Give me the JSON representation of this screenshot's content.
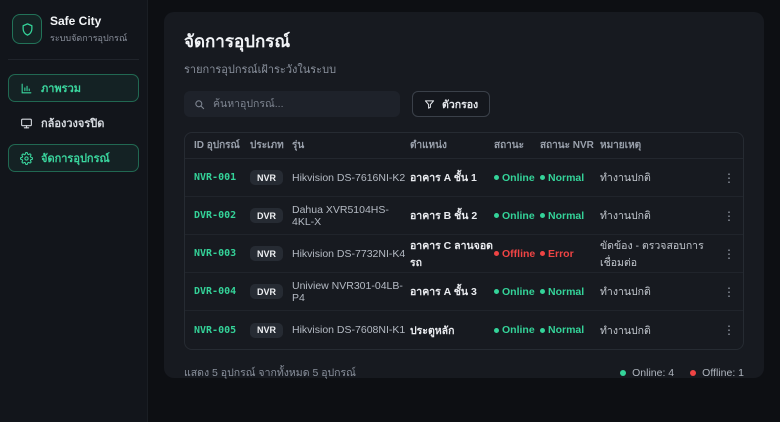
{
  "brand": {
    "name": "Safe City",
    "subtitle": "ระบบจัดการอุปกรณ์"
  },
  "sidebar": {
    "items": [
      {
        "label": "ภาพรวม",
        "icon": "bar-chart-icon",
        "active": true
      },
      {
        "label": "กล้องวงจรปิด",
        "icon": "monitor-icon",
        "active": false
      },
      {
        "label": "จัดการอุปกรณ์",
        "icon": "gear-icon",
        "active": true
      }
    ]
  },
  "header": {
    "title": "จัดการอุปกรณ์",
    "subtitle": "รายการอุปกรณ์เฝ้าระวังในระบบ"
  },
  "toolbar": {
    "search_placeholder": "ค้นหาอุปกรณ์...",
    "filter_label": "ตัวกรอง"
  },
  "table": {
    "columns": [
      "ID อุปกรณ์",
      "ประเภท",
      "รุ่น",
      "ตำแหน่ง",
      "สถานะ",
      "สถานะ NVR",
      "หมายเหตุ"
    ],
    "rows": [
      {
        "id": "NVR-001",
        "type": "NVR",
        "model": "Hikvision DS-7616NI-K2",
        "location": "อาคาร A ชั้น 1",
        "status": "Online",
        "nvr_status": "Normal",
        "note": "ทำงานปกติ",
        "status_ok": true,
        "nvr_ok": true
      },
      {
        "id": "DVR-002",
        "type": "DVR",
        "model": "Dahua XVR5104HS-4KL-X",
        "location": "อาคาร B ชั้น 2",
        "status": "Online",
        "nvr_status": "Normal",
        "note": "ทำงานปกติ",
        "status_ok": true,
        "nvr_ok": true
      },
      {
        "id": "NVR-003",
        "type": "NVR",
        "model": "Hikvision DS-7732NI-K4",
        "location": "อาคาร C ลานจอดรถ",
        "status": "Offline",
        "nvr_status": "Error",
        "note": "ขัดข้อง - ตรวจสอบการเชื่อมต่อ",
        "status_ok": false,
        "nvr_ok": false
      },
      {
        "id": "DVR-004",
        "type": "DVR",
        "model": "Uniview NVR301-04LB-P4",
        "location": "อาคาร A ชั้น 3",
        "status": "Online",
        "nvr_status": "Normal",
        "note": "ทำงานปกติ",
        "status_ok": true,
        "nvr_ok": true
      },
      {
        "id": "NVR-005",
        "type": "NVR",
        "model": "Hikvision DS-7608NI-K1",
        "location": "ประตูหลัก",
        "status": "Online",
        "nvr_status": "Normal",
        "note": "ทำงานปกติ",
        "status_ok": true,
        "nvr_ok": true
      }
    ]
  },
  "footer": {
    "summary": "แสดง 5 อุปกรณ์ จากทั้งหมด 5 อุปกรณ์",
    "online_label": "Online: 4",
    "offline_label": "Offline: 1"
  },
  "colors": {
    "accent": "#34d399",
    "danger": "#ef4444"
  }
}
